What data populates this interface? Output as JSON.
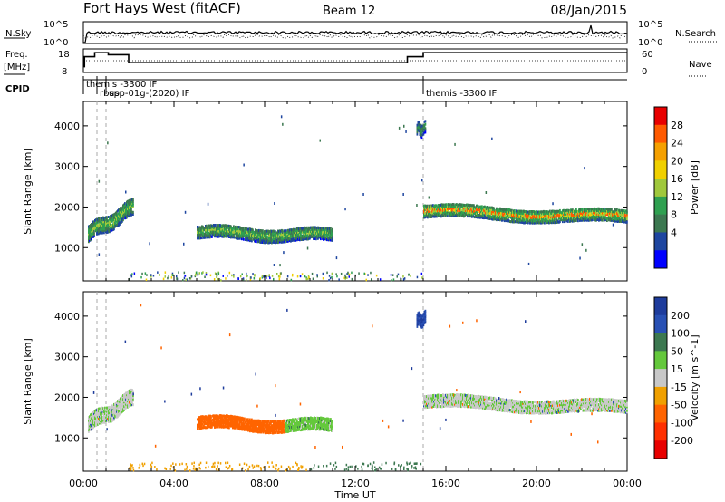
{
  "header": {
    "station": "Fort Hays West (fitACF)",
    "beam": "Beam 12",
    "date": "08/Jan/2015"
  },
  "summary": {
    "nsky_label": "N.Sky",
    "nsky_ticks": [
      "10^5",
      "10^0"
    ],
    "nsearch_label": "N.Search",
    "nsearch_ticks": [
      "10^5",
      "10^0"
    ],
    "freq_label": "Freq.",
    "freq_unit": "[MHz]",
    "freq_ticks": [
      "18",
      "8"
    ],
    "nave_label": "Nave",
    "nave_ticks": [
      "60",
      "0"
    ],
    "cpid_label": "CPID",
    "cpid_entries": [
      {
        "hour": 0.0,
        "text": "themis -3300 IF",
        "row": 0
      },
      {
        "hour": 0.6,
        "text": "rbspr",
        "row": 1
      },
      {
        "hour": 1.0,
        "text": "usp-01g-(2020) IF",
        "row": 1
      },
      {
        "hour": 15.0,
        "text": "themis -3300 IF",
        "row": 1
      }
    ]
  },
  "chart_data": [
    {
      "type": "heatmap",
      "title": "Power",
      "ylabel": "Slant Range [km]",
      "xlabel": "",
      "xlim_hours": [
        0,
        24
      ],
      "ylim": [
        180,
        4600
      ],
      "yticks": [
        1000,
        2000,
        3000,
        4000
      ],
      "colorbar": {
        "label": "Power [dB]",
        "ticks": [
          "28",
          "24",
          "20",
          "16",
          "12",
          "8",
          "4"
        ],
        "colors": [
          "#e80000",
          "#ff5a00",
          "#f5a000",
          "#f0d000",
          "#a0c83c",
          "#2fa050",
          "#3c7850",
          "#1e46a0",
          "#0000ff"
        ]
      },
      "echo_regions": [
        {
          "x": [
            0.2,
            2.2
          ],
          "range_center": [
            1350,
            2000
          ],
          "thickness": 400,
          "power_db": 14
        },
        {
          "x": [
            5.0,
            11.0
          ],
          "range_center": [
            1380,
            1300
          ],
          "thickness": 300,
          "power_db": 13
        },
        {
          "x": [
            15.0,
            24.0
          ],
          "range_center": [
            1900,
            1750
          ],
          "thickness": 300,
          "power_db": 17
        },
        {
          "x": [
            14.7,
            15.1
          ],
          "range_center": [
            3900,
            3950
          ],
          "thickness": 300,
          "power_db": 9
        }
      ]
    },
    {
      "type": "heatmap",
      "title": "Velocity",
      "ylabel": "Slant Range [km]",
      "xlabel": "Time UT",
      "xlim_hours": [
        0,
        24
      ],
      "ylim": [
        180,
        4600
      ],
      "yticks": [
        1000,
        2000,
        3000,
        4000
      ],
      "xticks": [
        "00:00",
        "04:00",
        "08:00",
        "12:00",
        "16:00",
        "20:00",
        "00:00"
      ],
      "colorbar": {
        "label": "Velocity [m s^-1]",
        "ticks": [
          "200",
          "100",
          "50",
          "15",
          "-15",
          "-50",
          "-100",
          "-200"
        ],
        "colors": [
          "#1e3c9c",
          "#2850b4",
          "#3c7850",
          "#64c83c",
          "#c8c8c8",
          "#f0a000",
          "#ff6400",
          "#ff3000",
          "#e80000"
        ]
      },
      "echo_regions": [
        {
          "x": [
            0.2,
            2.2
          ],
          "range_center": [
            1350,
            2000
          ],
          "thickness": 400,
          "velocity": 0
        },
        {
          "x": [
            5.0,
            11.0
          ],
          "range_center": [
            1380,
            1300
          ],
          "thickness": 300,
          "velocity": -100
        },
        {
          "x": [
            15.0,
            24.0
          ],
          "range_center": [
            1900,
            1750
          ],
          "thickness": 300,
          "velocity": 0
        },
        {
          "x": [
            14.7,
            15.1
          ],
          "range_center": [
            3900,
            3950
          ],
          "thickness": 300,
          "velocity": 150
        }
      ]
    }
  ]
}
